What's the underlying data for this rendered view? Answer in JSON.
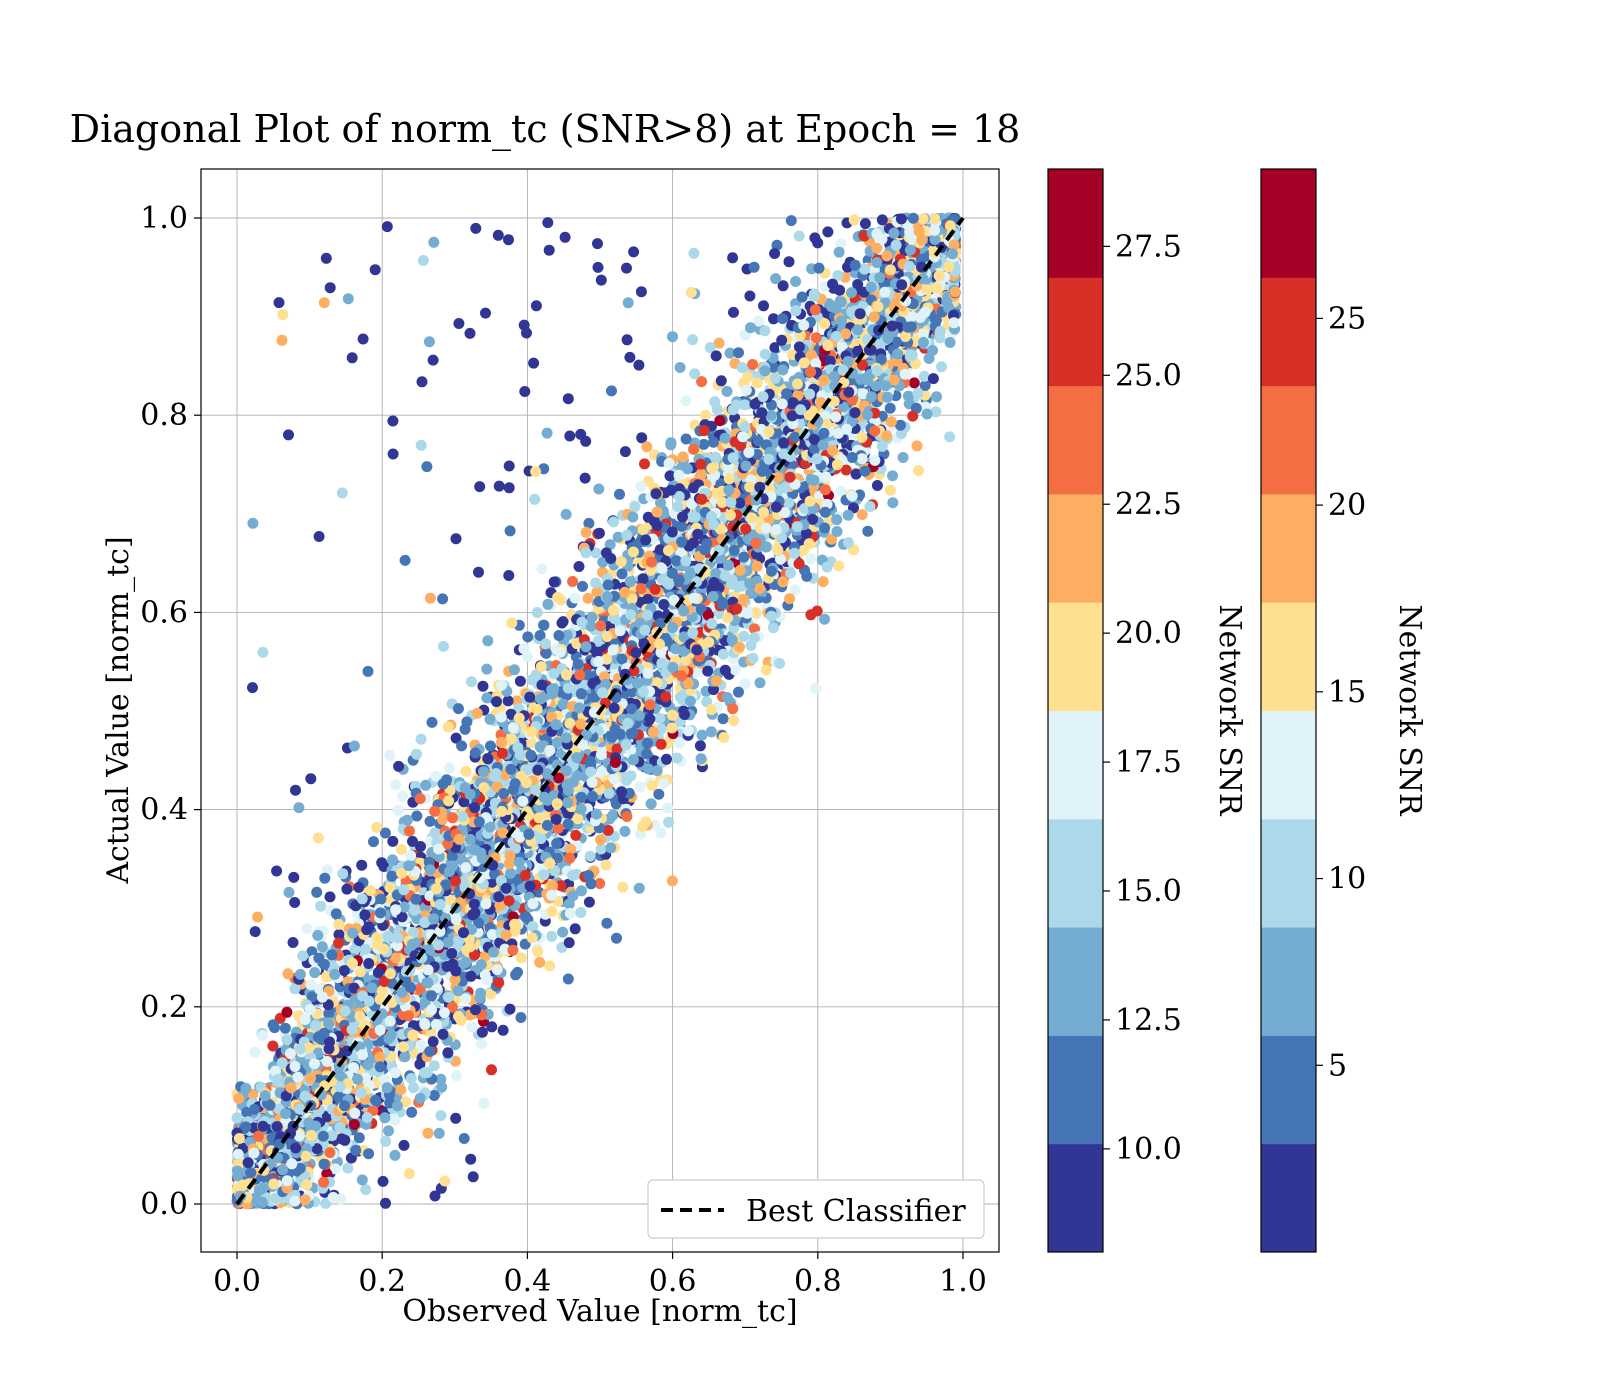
{
  "chart_data": {
    "type": "scatter",
    "title": "Diagonal Plot of norm_tc (SNR>8) at Epoch = 18",
    "xlabel": "Observed Value [norm_tc]",
    "ylabel": "Actual Value [norm_tc]",
    "xlim": [
      -0.05,
      1.05
    ],
    "ylim": [
      -0.1,
      1.1
    ],
    "grid": true,
    "x_ticks": [
      "0.0",
      "0.2",
      "0.4",
      "0.6",
      "0.8",
      "1.0"
    ],
    "y_ticks": [
      "0.0",
      "0.2",
      "0.4",
      "0.6",
      "0.8",
      "1.0"
    ],
    "x_tick_values": [
      0,
      0.2,
      0.4,
      0.6,
      0.8,
      1.0
    ],
    "y_tick_values": [
      0,
      0.2,
      0.4,
      0.6,
      0.8,
      1.0
    ],
    "reference_line": {
      "name": "Best Classifier",
      "style": "dashed",
      "color": "#000000",
      "from": [
        0,
        0
      ],
      "to": [
        1,
        1
      ]
    },
    "legend": {
      "location": "lower right",
      "entries": [
        "Best Classifier"
      ]
    },
    "point_count_approx": 8000,
    "color_variable": "Network SNR",
    "scatter_description": "Dense band of points along the diagonal y = x (band half-width about 0.06–0.08), with sparse outliers mostly above the diagonal (low observed, high actual). Colours encode Network SNR using the discrete RdYlBu_r colormap.",
    "colormap": [
      "#313695",
      "#4575b4",
      "#74add1",
      "#abd9e9",
      "#e0f3f8",
      "#fee090",
      "#fdae61",
      "#f46d43",
      "#d73027",
      "#a50026"
    ],
    "colorbars": [
      {
        "label": "Network SNR",
        "range": [
          8,
          29
        ],
        "ticks": [
          10.0,
          12.5,
          15.0,
          17.5,
          20.0,
          22.5,
          25.0,
          27.5
        ],
        "tick_labels": [
          "10.0",
          "12.5",
          "15.0",
          "17.5",
          "20.0",
          "22.5",
          "25.0",
          "27.5"
        ]
      },
      {
        "label": "Network SNR",
        "range": [
          0,
          29
        ],
        "ticks": [
          5,
          10,
          15,
          20,
          25
        ],
        "tick_labels": [
          "5",
          "10",
          "15",
          "20",
          "25"
        ]
      }
    ]
  }
}
